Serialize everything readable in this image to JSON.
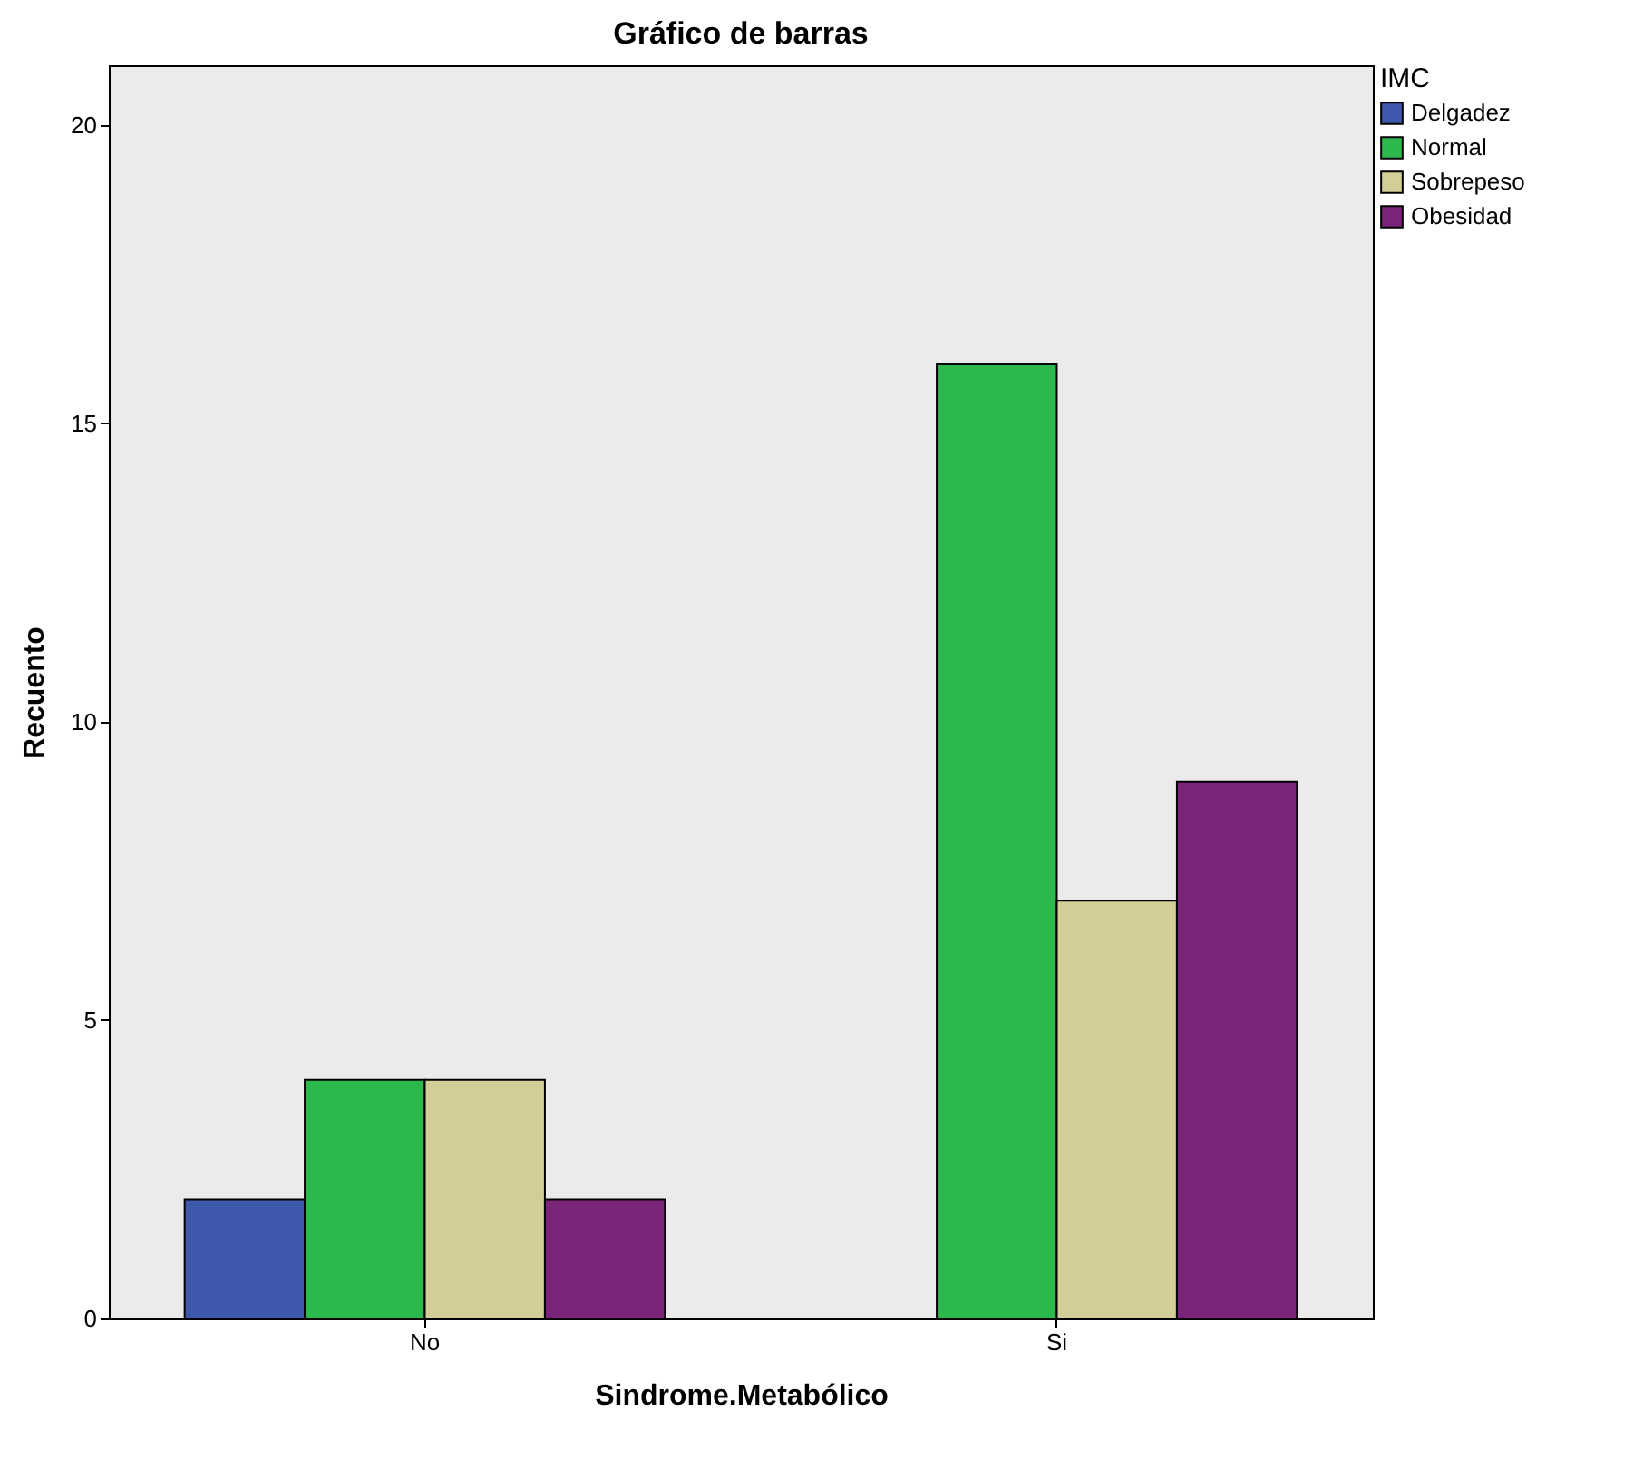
{
  "chart_data": {
    "type": "bar",
    "title": "Gráfico de barras",
    "xlabel": "Sindrome.Metabólico",
    "ylabel": "Recuento",
    "legend_title": "IMC",
    "categories": [
      "No",
      "Si"
    ],
    "series": [
      {
        "name": "Delgadez",
        "color": "#3e58ac",
        "values": [
          2,
          null
        ]
      },
      {
        "name": "Normal",
        "color": "#2db84d",
        "values": [
          4,
          16
        ]
      },
      {
        "name": "Sobrepeso",
        "color": "#d3ce97",
        "values": [
          4,
          7
        ]
      },
      {
        "name": "Obesidad",
        "color": "#7b2479",
        "values": [
          2,
          9
        ]
      }
    ],
    "ylim": [
      0,
      21
    ],
    "yticks": [
      0,
      5,
      10,
      15,
      20
    ],
    "grid": false,
    "legend": "top right"
  }
}
